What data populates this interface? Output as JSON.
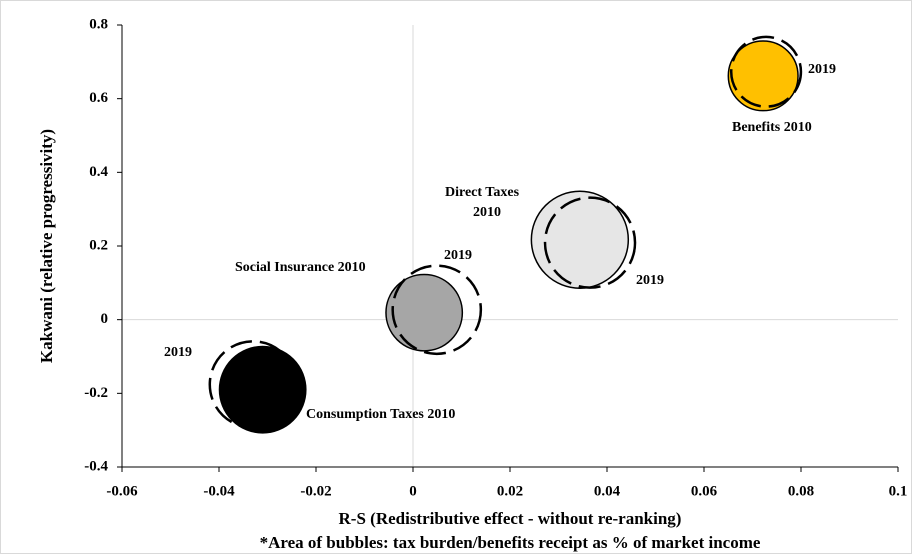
{
  "chart_data": {
    "type": "bubble",
    "xlabel": "R-S (Redistributive  effect - without re-ranking)",
    "ylabel": "Kakwani (relative progressivity)",
    "footnote": "*Area of bubbles: tax burden/benefits receipt as % of market income",
    "xlim": [
      -0.06,
      0.1
    ],
    "xticks": [
      -0.06,
      -0.04,
      -0.02,
      0,
      0.02,
      0.04,
      0.06,
      0.08,
      0.1
    ],
    "ylim": [
      -0.4,
      0.8
    ],
    "yticks": [
      0.8,
      0.6,
      0.4,
      0.2,
      0,
      -0.2,
      -0.4
    ],
    "series": [
      {
        "style": "filled",
        "x": [
          0.0722,
          0.0344,
          0.0023,
          -0.031
        ],
        "values": [
          0.662,
          0.217,
          0.019,
          -0.19
        ],
        "sizes": [
          15,
          29,
          18,
          23
        ],
        "colors": [
          "#ffc000",
          "#e6e6e6",
          "#a6a6a6",
          "#000000"
        ]
      },
      {
        "style": "dashed",
        "x": [
          0.0728,
          0.0365,
          0.0049,
          -0.033
        ],
        "values": [
          0.673,
          0.209,
          0.027,
          -0.176
        ],
        "sizes": [
          15,
          25,
          24,
          23
        ],
        "color": "#000000"
      }
    ],
    "annotations": [
      "2019",
      "Benefits 2010",
      "Direct Taxes",
      "2010",
      "2019",
      "Social Insurance 2010",
      "2019",
      "2019",
      "Consumption  Taxes 2010"
    ]
  }
}
